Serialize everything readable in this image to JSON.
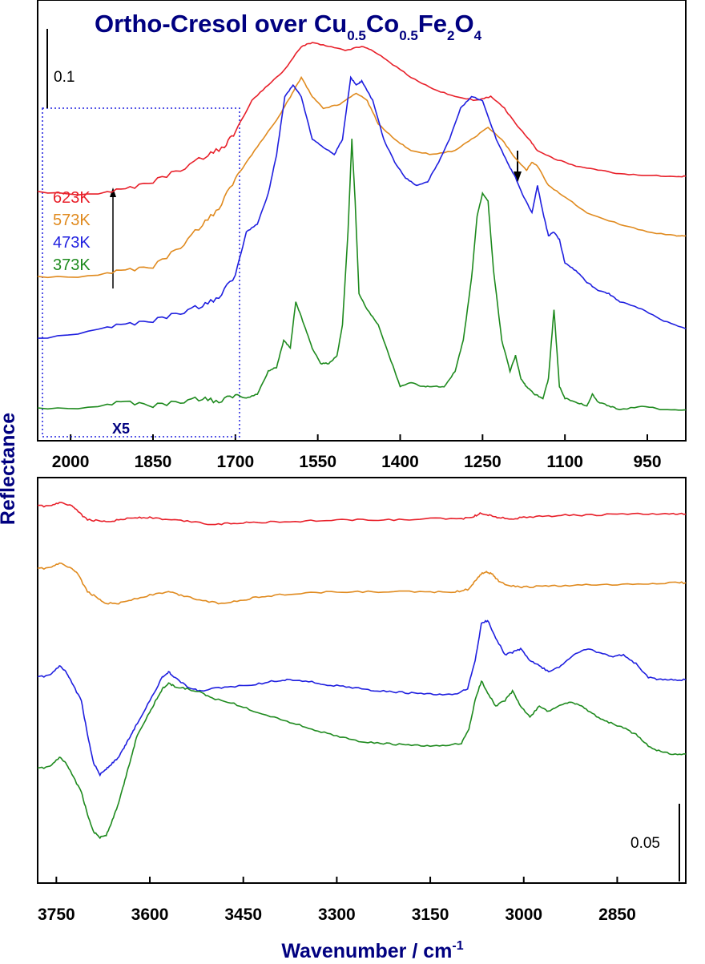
{
  "chart_data": [
    {
      "type": "line",
      "panel": "top",
      "title": {
        "main": "Ortho-Cresol over Cu",
        "sub1": "0.5",
        "mid1": "Co",
        "sub2": "0.5",
        "mid2": "Fe",
        "sub3": "2",
        "mid3": "O",
        "sub4": "4"
      },
      "ylabel": "Reflectance",
      "xlim": [
        2060,
        880
      ],
      "x_reversed": true,
      "xticks": [
        2000,
        1850,
        1700,
        1550,
        1400,
        1250,
        1100,
        950
      ],
      "scale_bar_label": "0.1",
      "inset_label": "X5",
      "inset_range": [
        2060,
        1700
      ],
      "annotation_arrow_x": 1200,
      "legend": [
        "623K",
        "573K",
        "473K",
        "373K"
      ],
      "colors": {
        "623K": "#e8202a",
        "573K": "#e08a1e",
        "473K": "#1f1fdf",
        "373K": "#1e8a1e"
      },
      "series": [
        {
          "name": "623K",
          "x": [
            2060,
            1950,
            1900,
            1850,
            1800,
            1750,
            1720,
            1700,
            1670,
            1640,
            1610,
            1580,
            1560,
            1530,
            1500,
            1470,
            1450,
            1420,
            1380,
            1340,
            1300,
            1260,
            1235,
            1210,
            1190,
            1165,
            1150,
            1120,
            1080,
            1040,
            1000,
            950,
            900,
            880
          ],
          "y": [
            0.05,
            0.05,
            0.055,
            0.065,
            0.08,
            0.1,
            0.11,
            0.13,
            0.17,
            0.19,
            0.21,
            0.24,
            0.245,
            0.24,
            0.235,
            0.24,
            0.235,
            0.22,
            0.2,
            0.185,
            0.175,
            0.17,
            0.175,
            0.16,
            0.14,
            0.12,
            0.105,
            0.095,
            0.085,
            0.08,
            0.075,
            0.073,
            0.072,
            0.072
          ]
        },
        {
          "name": "573K",
          "x": [
            2060,
            1950,
            1900,
            1850,
            1800,
            1760,
            1730,
            1700,
            1680,
            1650,
            1620,
            1600,
            1580,
            1560,
            1540,
            1510,
            1480,
            1460,
            1440,
            1410,
            1380,
            1340,
            1300,
            1270,
            1240,
            1215,
            1190,
            1170,
            1160,
            1150,
            1130,
            1100,
            1060,
            1000,
            950,
            900,
            880
          ],
          "y": [
            -0.06,
            -0.055,
            -0.05,
            -0.045,
            -0.02,
            0.01,
            0.03,
            0.07,
            0.09,
            0.12,
            0.15,
            0.175,
            0.2,
            0.175,
            0.16,
            0.165,
            0.18,
            0.17,
            0.14,
            0.12,
            0.105,
            0.1,
            0.105,
            0.12,
            0.135,
            0.12,
            0.095,
            0.08,
            0.09,
            0.085,
            0.06,
            0.045,
            0.025,
            0.01,
            0.0,
            -0.005,
            -0.005
          ]
        },
        {
          "name": "473K",
          "x": [
            2060,
            1950,
            1900,
            1850,
            1800,
            1760,
            1730,
            1700,
            1680,
            1660,
            1640,
            1625,
            1610,
            1595,
            1580,
            1560,
            1540,
            1520,
            1505,
            1490,
            1480,
            1470,
            1450,
            1430,
            1410,
            1390,
            1370,
            1350,
            1330,
            1310,
            1290,
            1270,
            1250,
            1225,
            1205,
            1190,
            1175,
            1160,
            1150,
            1140,
            1130,
            1120,
            1110,
            1100,
            1080,
            1060,
            1040,
            1020,
            1000,
            960,
            920,
            880
          ],
          "y": [
            -0.14,
            -0.125,
            -0.12,
            -0.115,
            -0.105,
            -0.095,
            -0.085,
            -0.055,
            0.0,
            0.01,
            0.05,
            0.1,
            0.175,
            0.19,
            0.175,
            0.12,
            0.11,
            0.1,
            0.12,
            0.2,
            0.19,
            0.195,
            0.17,
            0.12,
            0.09,
            0.07,
            0.06,
            0.065,
            0.09,
            0.12,
            0.16,
            0.175,
            0.17,
            0.12,
            0.09,
            0.07,
            0.045,
            0.025,
            0.06,
            0.025,
            -0.005,
            0.0,
            -0.01,
            -0.04,
            -0.05,
            -0.065,
            -0.075,
            -0.08,
            -0.09,
            -0.1,
            -0.115,
            -0.125
          ]
        },
        {
          "name": "373K",
          "x": [
            2060,
            1950,
            1900,
            1850,
            1800,
            1760,
            1730,
            1700,
            1680,
            1660,
            1640,
            1625,
            1612,
            1600,
            1590,
            1575,
            1560,
            1545,
            1530,
            1515,
            1505,
            1495,
            1488,
            1482,
            1475,
            1460,
            1440,
            1420,
            1400,
            1380,
            1360,
            1340,
            1320,
            1300,
            1285,
            1270,
            1260,
            1250,
            1240,
            1230,
            1215,
            1200,
            1190,
            1180,
            1170,
            1155,
            1140,
            1130,
            1120,
            1115,
            1110,
            1100,
            1080,
            1060,
            1050,
            1040,
            1020,
            1000,
            960,
            920,
            880
          ],
          "y": [
            -0.23,
            -0.225,
            -0.22,
            -0.225,
            -0.22,
            -0.215,
            -0.22,
            -0.21,
            -0.215,
            -0.21,
            -0.18,
            -0.175,
            -0.14,
            -0.15,
            -0.09,
            -0.12,
            -0.15,
            -0.17,
            -0.17,
            -0.16,
            -0.12,
            0.0,
            0.12,
            0.04,
            -0.08,
            -0.1,
            -0.12,
            -0.16,
            -0.2,
            -0.195,
            -0.2,
            -0.2,
            -0.2,
            -0.18,
            -0.14,
            -0.06,
            0.02,
            0.05,
            0.04,
            -0.05,
            -0.14,
            -0.18,
            -0.16,
            -0.19,
            -0.2,
            -0.21,
            -0.215,
            -0.19,
            -0.1,
            -0.15,
            -0.2,
            -0.215,
            -0.22,
            -0.225,
            -0.21,
            -0.22,
            -0.225,
            -0.23,
            -0.225,
            -0.23,
            -0.23
          ]
        }
      ]
    },
    {
      "type": "line",
      "panel": "bottom",
      "xlabel": {
        "main": "Wavenumber / cm",
        "sup": "-1"
      },
      "xlim": [
        3780,
        2740
      ],
      "x_reversed": true,
      "xticks": [
        3750,
        3600,
        3450,
        3300,
        3150,
        3000,
        2850
      ],
      "scale_bar_label": "0.05",
      "series": [
        {
          "name": "623K",
          "x": [
            3780,
            3760,
            3745,
            3725,
            3715,
            3700,
            3680,
            3660,
            3640,
            3620,
            3600,
            3570,
            3540,
            3500,
            3470,
            3440,
            3400,
            3350,
            3300,
            3250,
            3200,
            3150,
            3100,
            3080,
            3068,
            3055,
            3040,
            3020,
            3000,
            2970,
            2940,
            2900,
            2850,
            2800,
            2760,
            2740
          ],
          "y": [
            0.1,
            0.1,
            0.103,
            0.1,
            0.095,
            0.088,
            0.087,
            0.087,
            0.089,
            0.09,
            0.09,
            0.088,
            0.087,
            0.084,
            0.085,
            0.086,
            0.086,
            0.087,
            0.088,
            0.088,
            0.088,
            0.089,
            0.089,
            0.091,
            0.094,
            0.092,
            0.09,
            0.089,
            0.09,
            0.091,
            0.092,
            0.092,
            0.093,
            0.093,
            0.093,
            0.093
          ]
        },
        {
          "name": "573K",
          "x": [
            3780,
            3760,
            3745,
            3725,
            3715,
            3700,
            3685,
            3670,
            3650,
            3630,
            3600,
            3570,
            3550,
            3520,
            3490,
            3460,
            3430,
            3400,
            3350,
            3300,
            3250,
            3200,
            3150,
            3110,
            3090,
            3080,
            3070,
            3060,
            3050,
            3040,
            3020,
            3000,
            2970,
            2940,
            2900,
            2850,
            2800,
            2760,
            2740
          ],
          "y": [
            0.045,
            0.046,
            0.05,
            0.045,
            0.04,
            0.025,
            0.02,
            0.015,
            0.015,
            0.018,
            0.022,
            0.025,
            0.022,
            0.018,
            0.015,
            0.017,
            0.02,
            0.022,
            0.024,
            0.025,
            0.025,
            0.025,
            0.025,
            0.025,
            0.027,
            0.033,
            0.04,
            0.043,
            0.04,
            0.034,
            0.03,
            0.029,
            0.03,
            0.03,
            0.031,
            0.031,
            0.032,
            0.033,
            0.033
          ]
        },
        {
          "name": "473K",
          "x": [
            3780,
            3760,
            3745,
            3735,
            3725,
            3710,
            3700,
            3690,
            3680,
            3670,
            3660,
            3650,
            3640,
            3630,
            3620,
            3600,
            3580,
            3570,
            3560,
            3540,
            3520,
            3500,
            3470,
            3430,
            3400,
            3380,
            3350,
            3320,
            3290,
            3260,
            3230,
            3200,
            3170,
            3140,
            3110,
            3090,
            3078,
            3068,
            3058,
            3045,
            3030,
            3018,
            3005,
            2990,
            2975,
            2960,
            2940,
            2920,
            2900,
            2880,
            2860,
            2840,
            2820,
            2800,
            2780,
            2760,
            2740
          ],
          "y": [
            -0.05,
            -0.048,
            -0.04,
            -0.045,
            -0.055,
            -0.07,
            -0.1,
            -0.125,
            -0.135,
            -0.13,
            -0.125,
            -0.12,
            -0.11,
            -0.1,
            -0.09,
            -0.07,
            -0.05,
            -0.045,
            -0.05,
            -0.058,
            -0.062,
            -0.06,
            -0.058,
            -0.056,
            -0.053,
            -0.052,
            -0.053,
            -0.056,
            -0.058,
            -0.06,
            -0.062,
            -0.063,
            -0.064,
            -0.065,
            -0.065,
            -0.06,
            -0.035,
            -0.003,
            0.0,
            -0.015,
            -0.03,
            -0.028,
            -0.025,
            -0.035,
            -0.04,
            -0.045,
            -0.04,
            -0.03,
            -0.025,
            -0.028,
            -0.032,
            -0.03,
            -0.038,
            -0.05,
            -0.052,
            -0.052,
            -0.052
          ]
        },
        {
          "name": "373K",
          "x": [
            3780,
            3760,
            3745,
            3735,
            3725,
            3710,
            3700,
            3690,
            3680,
            3670,
            3660,
            3650,
            3640,
            3630,
            3620,
            3600,
            3590,
            3580,
            3570,
            3560,
            3540,
            3520,
            3500,
            3470,
            3440,
            3400,
            3370,
            3340,
            3310,
            3280,
            3250,
            3220,
            3190,
            3160,
            3130,
            3100,
            3088,
            3078,
            3068,
            3058,
            3045,
            3030,
            3018,
            3005,
            2990,
            2975,
            2960,
            2945,
            2930,
            2915,
            2900,
            2880,
            2860,
            2840,
            2820,
            2800,
            2780,
            2760,
            2740
          ],
          "y": [
            -0.13,
            -0.128,
            -0.12,
            -0.125,
            -0.135,
            -0.15,
            -0.17,
            -0.185,
            -0.19,
            -0.188,
            -0.175,
            -0.16,
            -0.14,
            -0.12,
            -0.1,
            -0.08,
            -0.07,
            -0.06,
            -0.055,
            -0.058,
            -0.06,
            -0.063,
            -0.068,
            -0.072,
            -0.078,
            -0.085,
            -0.09,
            -0.095,
            -0.1,
            -0.104,
            -0.107,
            -0.108,
            -0.109,
            -0.11,
            -0.11,
            -0.108,
            -0.095,
            -0.07,
            -0.053,
            -0.063,
            -0.075,
            -0.07,
            -0.062,
            -0.075,
            -0.085,
            -0.075,
            -0.08,
            -0.075,
            -0.072,
            -0.073,
            -0.078,
            -0.085,
            -0.09,
            -0.094,
            -0.1,
            -0.11,
            -0.115,
            -0.117,
            -0.117
          ]
        }
      ]
    }
  ]
}
